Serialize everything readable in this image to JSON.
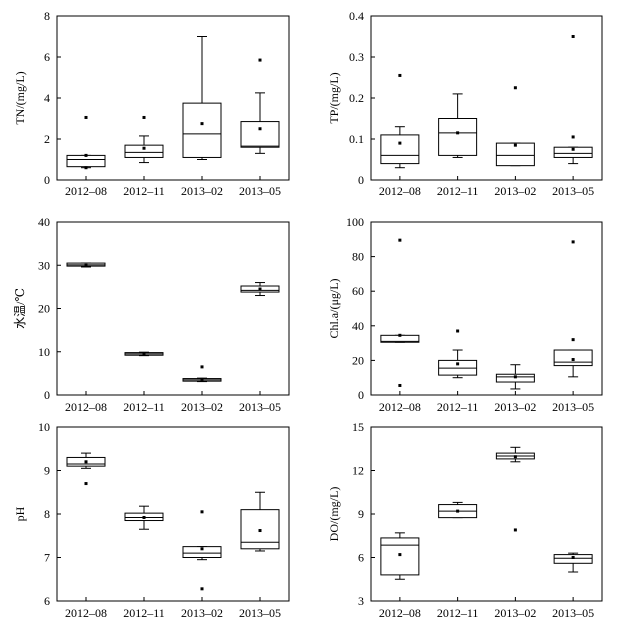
{
  "chart_data": [
    {
      "type": "box",
      "ylabel": "TN/(mg/L)",
      "ylim": [
        0,
        8
      ],
      "yticks": [
        0,
        2,
        4,
        6,
        8
      ],
      "categories": [
        "2012–08",
        "2012–11",
        "2013–02",
        "2013–05"
      ],
      "boxes": [
        {
          "q1": 0.65,
          "median": 1.0,
          "q3": 1.2,
          "whislo": 0.6,
          "whishi": 1.2,
          "mean": 1.2,
          "outliers": [
            3.05,
            0.6
          ]
        },
        {
          "q1": 1.1,
          "median": 1.35,
          "q3": 1.7,
          "whislo": 0.85,
          "whishi": 2.15,
          "mean": 1.55,
          "outliers": [
            3.05
          ]
        },
        {
          "q1": 1.1,
          "median": 2.25,
          "q3": 3.75,
          "whislo": 1.0,
          "whishi": 7.0,
          "mean": 2.75,
          "outliers": []
        },
        {
          "q1": 1.6,
          "median": 1.65,
          "q3": 2.85,
          "whislo": 1.3,
          "whishi": 4.25,
          "mean": 2.5,
          "outliers": [
            5.85
          ]
        }
      ]
    },
    {
      "type": "box",
      "ylabel": "TP/(mg/L)",
      "ylim": [
        0,
        0.4
      ],
      "yticks": [
        0,
        0.1,
        0.2,
        0.3,
        0.4
      ],
      "categories": [
        "2012–08",
        "2012–11",
        "2013–02",
        "2013–05"
      ],
      "boxes": [
        {
          "q1": 0.04,
          "median": 0.06,
          "q3": 0.11,
          "whislo": 0.03,
          "whishi": 0.13,
          "mean": 0.09,
          "outliers": [
            0.255
          ]
        },
        {
          "q1": 0.06,
          "median": 0.115,
          "q3": 0.15,
          "whislo": 0.055,
          "whishi": 0.21,
          "mean": 0.115,
          "outliers": []
        },
        {
          "q1": 0.035,
          "median": 0.06,
          "q3": 0.09,
          "whislo": 0.035,
          "whishi": 0.09,
          "mean": 0.085,
          "outliers": [
            0.225
          ]
        },
        {
          "q1": 0.055,
          "median": 0.065,
          "q3": 0.08,
          "whislo": 0.04,
          "whishi": 0.08,
          "mean": 0.075,
          "outliers": [
            0.35,
            0.105
          ]
        }
      ]
    },
    {
      "type": "box",
      "ylabel": "水温/℃",
      "ylim": [
        0,
        40
      ],
      "yticks": [
        0,
        10,
        20,
        30,
        40
      ],
      "categories": [
        "2012–08",
        "2012–11",
        "2013–02",
        "2013–05"
      ],
      "boxes": [
        {
          "q1": 29.8,
          "median": 30.1,
          "q3": 30.5,
          "whislo": 29.6,
          "whishi": 30.5,
          "mean": 30.0,
          "outliers": []
        },
        {
          "q1": 9.2,
          "median": 9.5,
          "q3": 9.8,
          "whislo": 9.1,
          "whishi": 9.9,
          "mean": 9.5,
          "outliers": []
        },
        {
          "q1": 3.2,
          "median": 3.5,
          "q3": 3.8,
          "whislo": 3.1,
          "whishi": 3.9,
          "mean": 3.6,
          "outliers": [
            6.5
          ]
        },
        {
          "q1": 23.8,
          "median": 24.2,
          "q3": 25.2,
          "whislo": 23.0,
          "whishi": 26.0,
          "mean": 24.5,
          "outliers": []
        }
      ]
    },
    {
      "type": "box",
      "ylabel": "Chl.a/(μg/L)",
      "ylim": [
        0,
        100
      ],
      "yticks": [
        0,
        20,
        40,
        60,
        80,
        100
      ],
      "categories": [
        "2012–08",
        "2012–11",
        "2013–02",
        "2013–05"
      ],
      "boxes": [
        {
          "q1": 30.5,
          "median": 31.0,
          "q3": 34.5,
          "whislo": 30.5,
          "whishi": 34.5,
          "mean": 34.5,
          "outliers": [
            89.5,
            5.5
          ]
        },
        {
          "q1": 11.5,
          "median": 15.5,
          "q3": 20.0,
          "whislo": 10.0,
          "whishi": 26.0,
          "mean": 18.0,
          "outliers": [
            37.0
          ]
        },
        {
          "q1": 7.5,
          "median": 10.5,
          "q3": 12.0,
          "whislo": 3.5,
          "whishi": 17.5,
          "mean": 10.5,
          "outliers": []
        },
        {
          "q1": 17.0,
          "median": 19.0,
          "q3": 26.0,
          "whislo": 10.5,
          "whishi": 26.0,
          "mean": 20.5,
          "outliers": [
            88.5,
            32.0
          ]
        }
      ]
    },
    {
      "type": "box",
      "ylabel": "pH",
      "ylim": [
        6,
        10
      ],
      "yticks": [
        6,
        7,
        8,
        9,
        10
      ],
      "categories": [
        "2012–08",
        "2012–11",
        "2013–02",
        "2013–05"
      ],
      "boxes": [
        {
          "q1": 9.1,
          "median": 9.15,
          "q3": 9.3,
          "whislo": 9.05,
          "whishi": 9.4,
          "mean": 9.2,
          "outliers": [
            8.7
          ]
        },
        {
          "q1": 7.85,
          "median": 7.92,
          "q3": 8.02,
          "whislo": 7.65,
          "whishi": 8.18,
          "mean": 7.92,
          "outliers": []
        },
        {
          "q1": 7.0,
          "median": 7.1,
          "q3": 7.25,
          "whislo": 6.95,
          "whishi": 7.25,
          "mean": 7.2,
          "outliers": [
            8.05,
            6.28
          ]
        },
        {
          "q1": 7.2,
          "median": 7.35,
          "q3": 8.1,
          "whislo": 7.15,
          "whishi": 8.5,
          "mean": 7.62,
          "outliers": []
        }
      ]
    },
    {
      "type": "box",
      "ylabel": "DO/(mg/L)",
      "ylim": [
        3,
        15
      ],
      "yticks": [
        3,
        6,
        9,
        12,
        15
      ],
      "categories": [
        "2012–08",
        "2012–11",
        "2013–02",
        "2013–05"
      ],
      "boxes": [
        {
          "q1": 4.8,
          "median": 6.85,
          "q3": 7.35,
          "whislo": 4.5,
          "whishi": 7.7,
          "mean": 6.2,
          "outliers": []
        },
        {
          "q1": 8.75,
          "median": 9.2,
          "q3": 9.65,
          "whislo": 8.75,
          "whishi": 9.8,
          "mean": 9.2,
          "outliers": []
        },
        {
          "q1": 12.8,
          "median": 13.0,
          "q3": 13.2,
          "whislo": 12.6,
          "whishi": 13.6,
          "mean": 12.95,
          "outliers": [
            7.9
          ]
        },
        {
          "q1": 5.6,
          "median": 5.95,
          "q3": 6.2,
          "whislo": 5.0,
          "whishi": 6.3,
          "mean": 6.0,
          "outliers": []
        }
      ]
    }
  ]
}
